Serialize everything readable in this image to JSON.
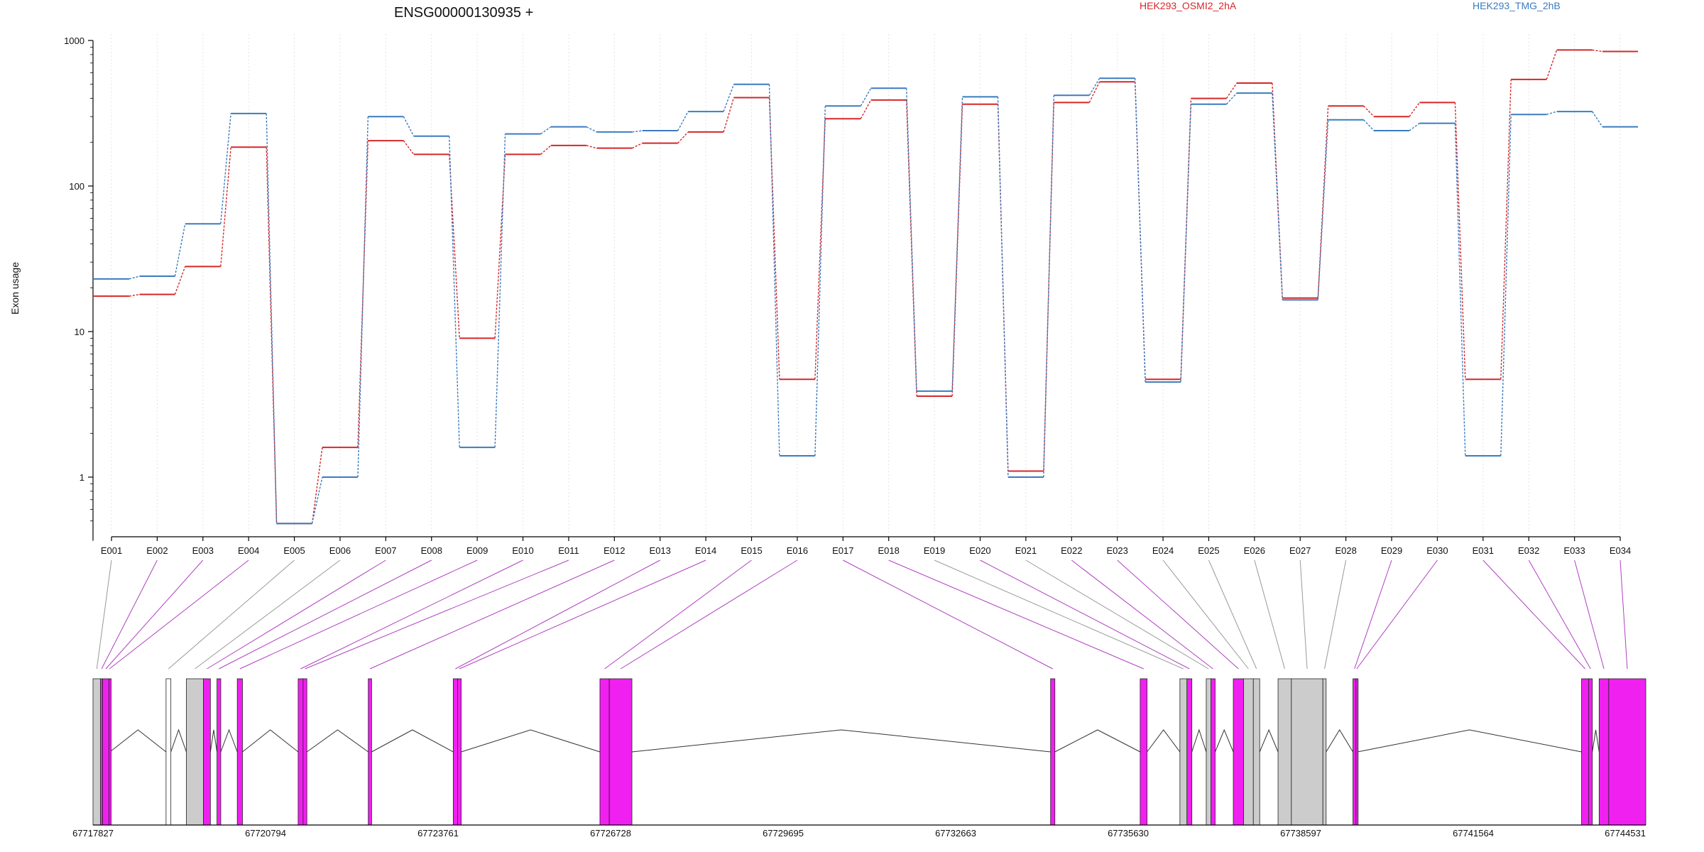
{
  "chart_data": [
    {
      "type": "line",
      "title": "ENSG00000130935 +",
      "xlabel": "",
      "ylabel": "Exon usage",
      "yscale": "log",
      "ylim": [
        0.4,
        1000
      ],
      "yticks": [
        1,
        10,
        100,
        1000
      ],
      "ytick_labels": [
        "1",
        "10",
        "100",
        "1000"
      ],
      "grid": "vertical dotted lines at each exon",
      "legend_placement": "top-right",
      "categories": [
        "E001",
        "E002",
        "E003",
        "E004",
        "E005",
        "E006",
        "E007",
        "E008",
        "E009",
        "E010",
        "E011",
        "E012",
        "E013",
        "E014",
        "E015",
        "E016",
        "E017",
        "E018",
        "E019",
        "E020",
        "E021",
        "E022",
        "E023",
        "E024",
        "E025",
        "E026",
        "E027",
        "E028",
        "E029",
        "E030",
        "E031",
        "E032",
        "E033",
        "E034"
      ],
      "series": [
        {
          "name": "HEK293_OSMI2_2hA",
          "color": "#d62728",
          "values": [
            17.5,
            18,
            28,
            185,
            0.48,
            1.6,
            205,
            165,
            9,
            165,
            190,
            182,
            197,
            235,
            405,
            4.7,
            290,
            390,
            3.6,
            365,
            1.1,
            375,
            520,
            4.7,
            400,
            510,
            17,
            355,
            300,
            375,
            4.7,
            540,
            860,
            840
          ]
        },
        {
          "name": "HEK293_TMG_2hB",
          "color": "#3b7bbf",
          "values": [
            23,
            24,
            55,
            315,
            0.48,
            1.0,
            300,
            220,
            1.6,
            228,
            255,
            235,
            240,
            325,
            500,
            1.4,
            355,
            470,
            3.9,
            410,
            1.0,
            420,
            550,
            4.5,
            365,
            435,
            16.5,
            285,
            240,
            270,
            1.4,
            310,
            325,
            255
          ]
        }
      ]
    },
    {
      "type": "diagram",
      "title": "",
      "xlabel": "",
      "axis_ticks": [
        "67717827",
        "67720794",
        "67723761",
        "67726728",
        "67729695",
        "67732663",
        "67735630",
        "67738597",
        "67741564",
        "67744531"
      ],
      "xlim": [
        67717827,
        67744531
      ],
      "colors": {
        "tested_exon": "#f020f0",
        "other_exon": "#cccccc",
        "connector_tested": "#b040c0",
        "connector_other": "#999999"
      },
      "exon_blocks": [
        {
          "id": "E001",
          "start": 67717827,
          "end": 67717957,
          "kind": "grey"
        },
        {
          "id": "E002",
          "start": 67717957,
          "end": 67717993,
          "kind": "magenta"
        },
        {
          "id": "E003",
          "start": 67717993,
          "end": 67718102,
          "kind": "magenta"
        },
        {
          "id": "E004",
          "start": 67718102,
          "end": 67718118,
          "kind": "magenta"
        },
        {
          "id": "E005",
          "start": 67719083,
          "end": 67719166,
          "kind": "white"
        },
        {
          "id": "E006",
          "start": 67719432,
          "end": 67719727,
          "kind": "grey"
        },
        {
          "id": "E007",
          "start": 67719727,
          "end": 67719846,
          "kind": "magenta"
        },
        {
          "id": "E008",
          "start": 67719959,
          "end": 67720024,
          "kind": "magenta"
        },
        {
          "id": "E009",
          "start": 67720308,
          "end": 67720397,
          "kind": "magenta"
        },
        {
          "id": "E010",
          "start": 67721355,
          "end": 67721440,
          "kind": "magenta"
        },
        {
          "id": "E011",
          "start": 67721440,
          "end": 67721505,
          "kind": "magenta"
        },
        {
          "id": "E012",
          "start": 67722561,
          "end": 67722618,
          "kind": "magenta"
        },
        {
          "id": "E013",
          "start": 67724022,
          "end": 67724096,
          "kind": "magenta"
        },
        {
          "id": "E014",
          "start": 67724096,
          "end": 67724159,
          "kind": "magenta"
        },
        {
          "id": "E015",
          "start": 67726545,
          "end": 67726706,
          "kind": "magenta"
        },
        {
          "id": "E016",
          "start": 67726706,
          "end": 67727095,
          "kind": "magenta"
        },
        {
          "id": "E017",
          "start": 67734295,
          "end": 67734369,
          "kind": "magenta"
        },
        {
          "id": "E018",
          "start": 67735836,
          "end": 67735954,
          "kind": "magenta"
        },
        {
          "id": "E019",
          "start": 67736519,
          "end": 67736640,
          "kind": "grey"
        },
        {
          "id": "E020",
          "start": 67736640,
          "end": 67736725,
          "kind": "magenta"
        },
        {
          "id": "E021",
          "start": 67736972,
          "end": 67737051,
          "kind": "grey"
        },
        {
          "id": "E022",
          "start": 67737051,
          "end": 67737125,
          "kind": "magenta"
        },
        {
          "id": "E023",
          "start": 67737437,
          "end": 67737614,
          "kind": "magenta"
        },
        {
          "id": "E024",
          "start": 67737614,
          "end": 67737782,
          "kind": "grey"
        },
        {
          "id": "E025",
          "start": 67737782,
          "end": 67737891,
          "kind": "grey"
        },
        {
          "id": "E026",
          "start": 67738207,
          "end": 67738436,
          "kind": "grey"
        },
        {
          "id": "E027",
          "start": 67738436,
          "end": 67738978,
          "kind": "grey"
        },
        {
          "id": "E028",
          "start": 67738978,
          "end": 67739034,
          "kind": "grey"
        },
        {
          "id": "E029",
          "start": 67739495,
          "end": 67739547,
          "kind": "magenta"
        },
        {
          "id": "E030",
          "start": 67739547,
          "end": 67739572,
          "kind": "magenta"
        },
        {
          "id": "E031",
          "start": 67743426,
          "end": 67743551,
          "kind": "magenta"
        },
        {
          "id": "E032",
          "start": 67743551,
          "end": 67743612,
          "kind": "magenta"
        },
        {
          "id": "E033",
          "start": 67743729,
          "end": 67743894,
          "kind": "magenta"
        },
        {
          "id": "E034",
          "start": 67743894,
          "end": 67744531,
          "kind": "magenta"
        }
      ]
    },
    {
      "type": "table",
      "legend": [
        {
          "name": "HEK293_OSMI2_2hA",
          "color": "#d62728"
        },
        {
          "name": "HEK293_TMG_2hB",
          "color": "#3b7bbf"
        }
      ]
    }
  ]
}
